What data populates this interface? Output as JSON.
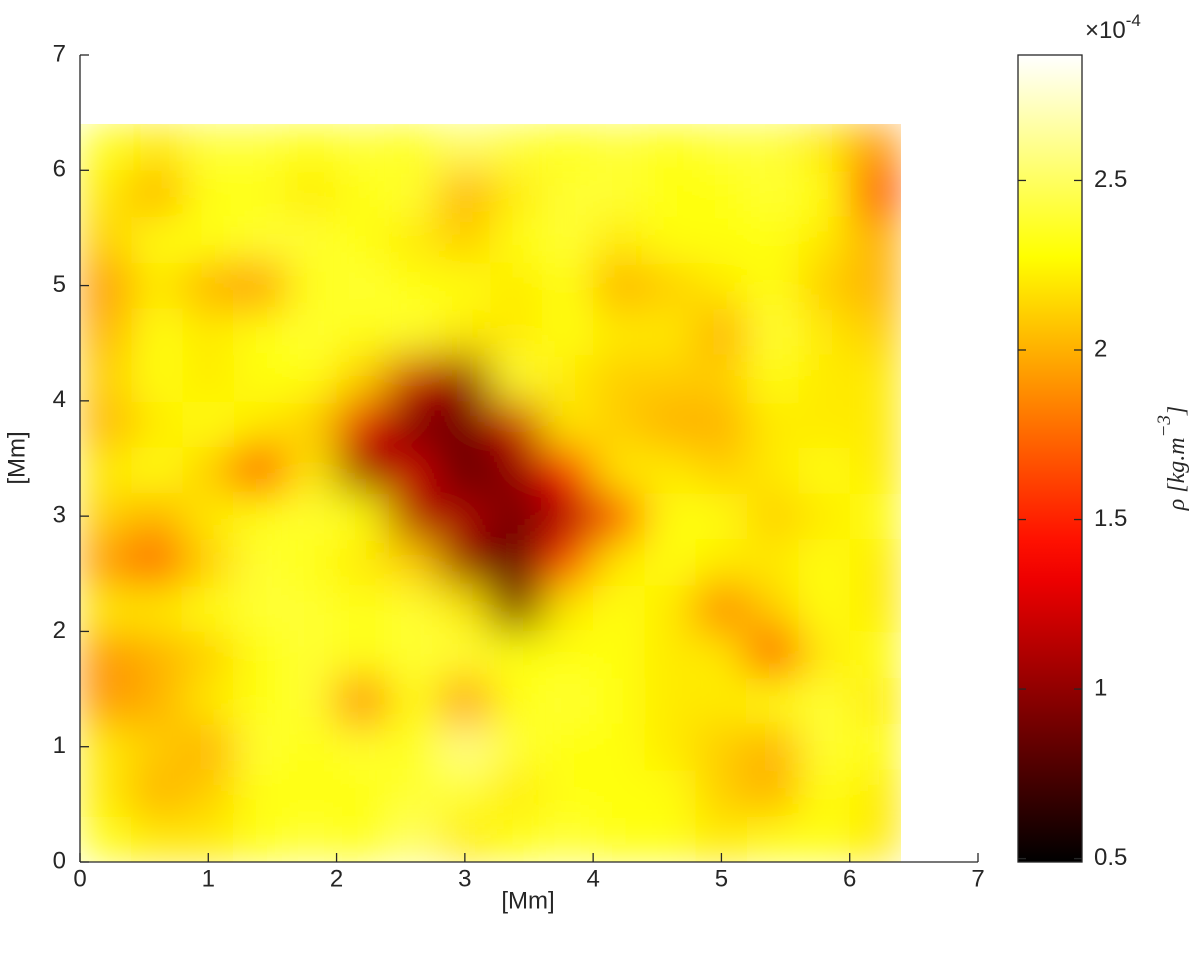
{
  "chart_data": {
    "type": "heatmap",
    "xlabel": "[Mm]",
    "ylabel": "[Mm]",
    "xlim": [
      0,
      7
    ],
    "xticks": [
      0,
      1,
      2,
      3,
      4,
      5,
      6,
      7
    ],
    "ylim": [
      0,
      7
    ],
    "yticks": [
      0,
      1,
      2,
      3,
      4,
      5,
      6,
      7
    ],
    "colormap": "hot",
    "clim": [
      0.49,
      2.87
    ],
    "colorbar_ticks": [
      0.5,
      1,
      1.5,
      2,
      2.5
    ],
    "colorbar_multiplier": "×10",
    "colorbar_exponent": "-4",
    "colorbar_label": {
      "base": "ρ [kg.m",
      "sup": "−3",
      "end": "]"
    },
    "x": [
      0.2,
      0.6,
      1.0,
      1.4,
      1.8,
      2.2,
      2.6,
      3.0,
      3.4,
      3.8,
      4.2,
      4.6,
      5.0,
      5.4,
      5.8,
      6.2
    ],
    "y": [
      0.2,
      0.6,
      1.0,
      1.4,
      1.8,
      2.2,
      2.6,
      3.0,
      3.4,
      3.8,
      4.2,
      4.6,
      5.0,
      5.4,
      5.8,
      6.2
    ],
    "z": [
      [
        2.3,
        2.2,
        2.2,
        2.3,
        2.4,
        2.3,
        2.5,
        2.2,
        2.3,
        2.4,
        2.3,
        2.3,
        2.2,
        2.3,
        2.3,
        2.2
      ],
      [
        2.2,
        2.0,
        2.1,
        2.3,
        2.3,
        2.3,
        2.4,
        2.4,
        2.2,
        2.3,
        2.3,
        2.3,
        2.1,
        2.0,
        2.3,
        2.2
      ],
      [
        2.2,
        2.1,
        2.0,
        2.4,
        2.3,
        2.4,
        2.3,
        2.6,
        2.4,
        2.3,
        2.3,
        2.2,
        2.1,
        2.0,
        2.4,
        2.3
      ],
      [
        1.9,
        2.0,
        2.2,
        2.3,
        2.4,
        1.8,
        2.3,
        1.9,
        2.3,
        2.4,
        2.3,
        2.2,
        2.2,
        2.3,
        2.4,
        2.2
      ],
      [
        1.9,
        2.0,
        2.1,
        2.3,
        2.4,
        2.3,
        2.4,
        2.4,
        2.3,
        2.3,
        2.3,
        2.2,
        2.2,
        1.6,
        2.2,
        2.3
      ],
      [
        2.2,
        2.2,
        2.3,
        2.4,
        2.4,
        2.3,
        2.4,
        2.2,
        0.9,
        2.2,
        2.3,
        2.2,
        1.8,
        2.1,
        2.3,
        2.2
      ],
      [
        1.9,
        1.7,
        2.1,
        2.4,
        2.3,
        2.2,
        2.1,
        1.0,
        0.8,
        1.6,
        2.2,
        2.3,
        2.2,
        2.2,
        2.3,
        2.2
      ],
      [
        2.1,
        2.0,
        2.2,
        2.3,
        2.4,
        2.3,
        1.1,
        1.1,
        0.9,
        1.1,
        1.6,
        2.3,
        2.3,
        2.1,
        2.2,
        2.3
      ],
      [
        2.2,
        2.3,
        2.1,
        1.5,
        2.2,
        1.0,
        1.2,
        0.8,
        1.0,
        1.4,
        2.2,
        2.2,
        2.1,
        2.2,
        2.3,
        2.2
      ],
      [
        2.0,
        2.2,
        2.3,
        2.2,
        2.1,
        1.3,
        0.9,
        0.9,
        1.2,
        2.2,
        2.1,
        2.0,
        2.0,
        2.2,
        2.2,
        2.2
      ],
      [
        2.1,
        2.3,
        2.2,
        2.3,
        2.3,
        2.1,
        1.2,
        1.0,
        2.4,
        2.2,
        2.1,
        2.1,
        2.1,
        2.3,
        2.2,
        2.2
      ],
      [
        2.0,
        2.3,
        2.2,
        2.3,
        2.4,
        2.3,
        2.4,
        2.2,
        2.2,
        2.3,
        2.2,
        2.2,
        2.0,
        2.4,
        2.2,
        2.1
      ],
      [
        1.9,
        2.2,
        2.0,
        1.9,
        2.3,
        2.4,
        2.3,
        2.3,
        2.2,
        2.3,
        2.0,
        2.1,
        2.2,
        2.3,
        2.1,
        2.0
      ],
      [
        2.1,
        2.3,
        2.3,
        2.4,
        2.4,
        2.3,
        2.2,
        2.1,
        2.3,
        2.4,
        2.2,
        2.3,
        2.3,
        2.3,
        2.2,
        2.0
      ],
      [
        2.2,
        2.0,
        2.3,
        2.3,
        2.2,
        2.3,
        2.4,
        2.0,
        2.2,
        2.4,
        2.4,
        2.3,
        2.3,
        2.4,
        2.3,
        1.6
      ],
      [
        2.3,
        2.2,
        2.4,
        2.4,
        2.3,
        2.4,
        2.3,
        2.5,
        2.4,
        2.3,
        2.4,
        2.3,
        2.4,
        2.4,
        2.2,
        1.9
      ]
    ]
  }
}
